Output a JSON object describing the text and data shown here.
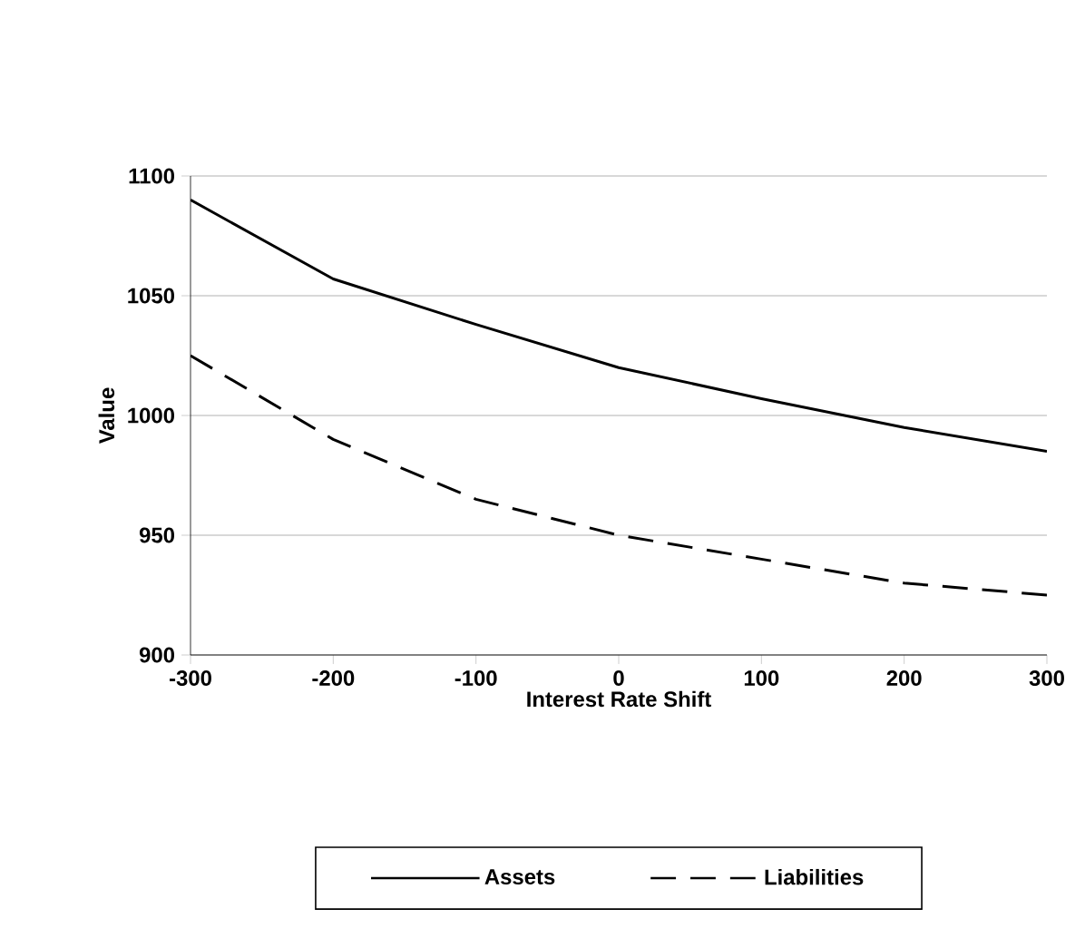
{
  "chart_data": {
    "type": "line",
    "xlabel": "Interest Rate Shift",
    "ylabel": "Value",
    "x": [
      -300,
      -200,
      -100,
      0,
      100,
      200,
      300
    ],
    "series": [
      {
        "name": "Assets",
        "color": "#000000",
        "line_style": "solid",
        "values": [
          1090,
          1057,
          1038,
          1020,
          1007,
          995,
          985
        ]
      },
      {
        "name": "Liabilities",
        "color": "#000000",
        "line_style": "dashed",
        "values": [
          1025,
          990,
          965,
          950,
          940,
          930,
          925
        ]
      }
    ],
    "xlim": [
      -300,
      300
    ],
    "xticks": [
      -300,
      -200,
      -100,
      0,
      100,
      200,
      300
    ],
    "ylim": [
      900,
      1100
    ],
    "yticks": [
      900,
      950,
      1000,
      1050,
      1100
    ],
    "grid": "y",
    "legend": "bottom"
  }
}
